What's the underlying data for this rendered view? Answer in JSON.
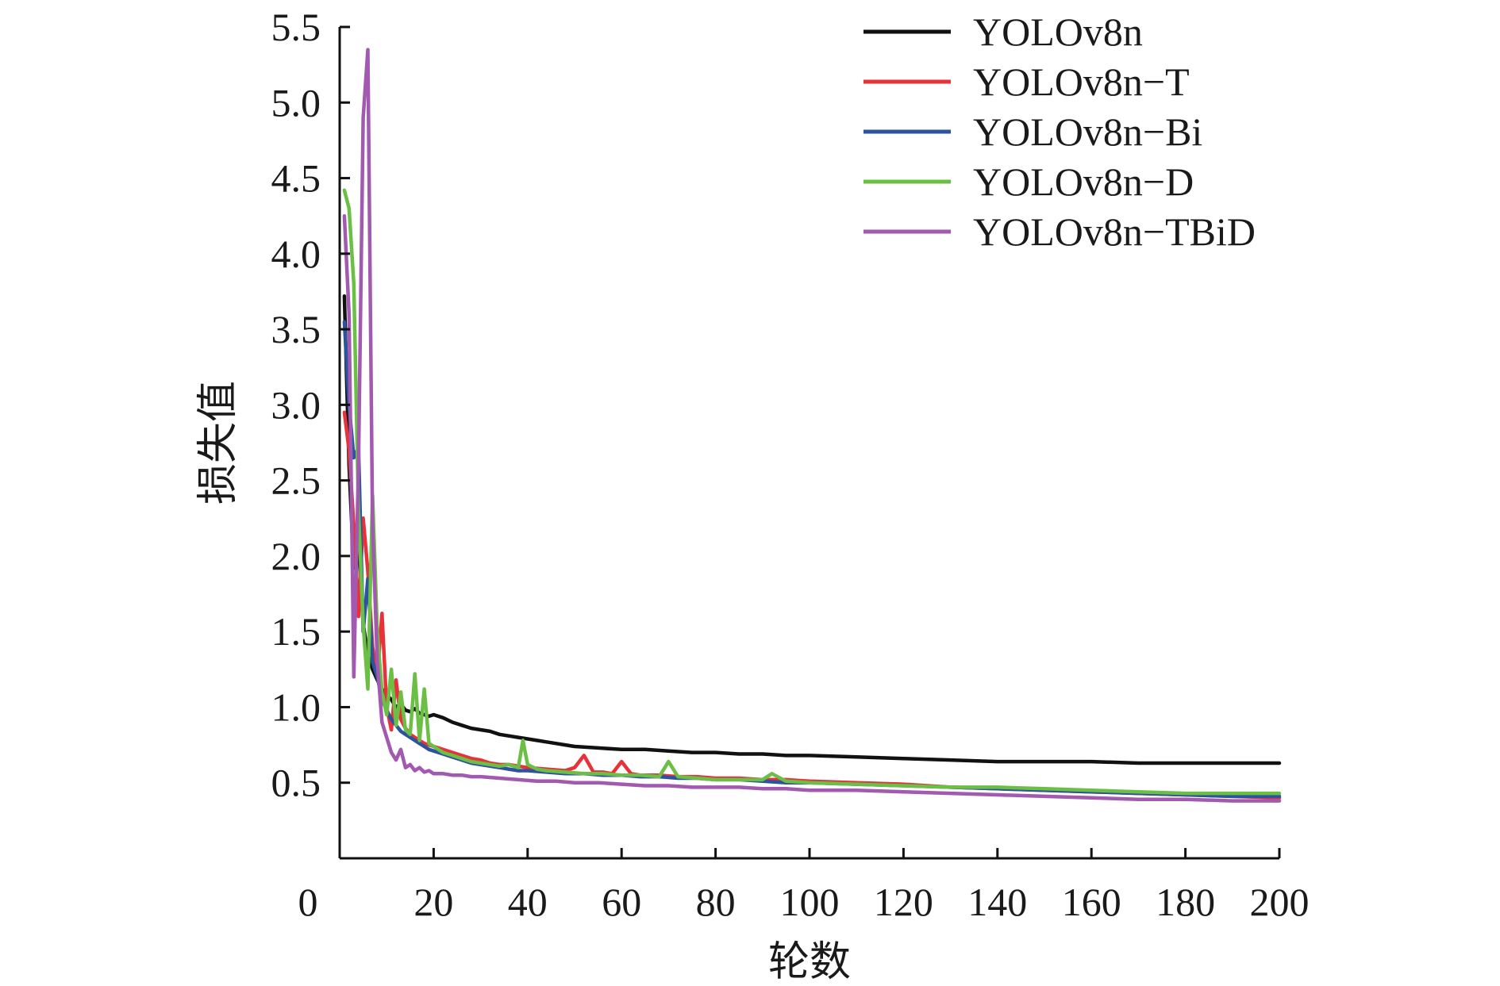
{
  "chart_data": {
    "type": "line",
    "title": "",
    "xlabel": "轮数",
    "ylabel": "损失值",
    "xlim": [
      0,
      200
    ],
    "ylim": [
      0,
      5.5
    ],
    "y_axis_min_label": "0",
    "xticks": [
      20,
      40,
      60,
      80,
      100,
      120,
      140,
      160,
      180,
      200
    ],
    "yticks": [
      0.5,
      1.0,
      1.5,
      2.0,
      2.5,
      3.0,
      3.5,
      4.0,
      4.5,
      5.0,
      5.5
    ],
    "ytick_labels": [
      "0.5",
      "1.0",
      "1.5",
      "2.0",
      "2.5",
      "3.0",
      "3.5",
      "4.0",
      "4.5",
      "5.0",
      "5.5"
    ],
    "grid": false,
    "legend_position": "top-right",
    "series": [
      {
        "name": "YOLOv8n",
        "color": "#111111",
        "points": [
          [
            1,
            3.72
          ],
          [
            2,
            2.6
          ],
          [
            3,
            1.92
          ],
          [
            4,
            2.1
          ],
          [
            5,
            1.55
          ],
          [
            6,
            1.35
          ],
          [
            7,
            1.25
          ],
          [
            8,
            1.18
          ],
          [
            9,
            1.12
          ],
          [
            10,
            1.08
          ],
          [
            11,
            1.05
          ],
          [
            12,
            1.0
          ],
          [
            13,
            1.02
          ],
          [
            14,
            0.98
          ],
          [
            15,
            0.97
          ],
          [
            16,
            0.99
          ],
          [
            17,
            0.96
          ],
          [
            18,
            0.95
          ],
          [
            19,
            0.94
          ],
          [
            20,
            0.95
          ],
          [
            22,
            0.93
          ],
          [
            24,
            0.9
          ],
          [
            26,
            0.88
          ],
          [
            28,
            0.86
          ],
          [
            30,
            0.85
          ],
          [
            32,
            0.84
          ],
          [
            34,
            0.82
          ],
          [
            36,
            0.81
          ],
          [
            38,
            0.8
          ],
          [
            40,
            0.79
          ],
          [
            42,
            0.78
          ],
          [
            44,
            0.77
          ],
          [
            46,
            0.76
          ],
          [
            48,
            0.75
          ],
          [
            50,
            0.74
          ],
          [
            55,
            0.73
          ],
          [
            60,
            0.72
          ],
          [
            65,
            0.72
          ],
          [
            70,
            0.71
          ],
          [
            75,
            0.7
          ],
          [
            80,
            0.7
          ],
          [
            85,
            0.69
          ],
          [
            90,
            0.69
          ],
          [
            95,
            0.68
          ],
          [
            100,
            0.68
          ],
          [
            110,
            0.67
          ],
          [
            120,
            0.66
          ],
          [
            130,
            0.65
          ],
          [
            140,
            0.64
          ],
          [
            150,
            0.64
          ],
          [
            160,
            0.64
          ],
          [
            170,
            0.63
          ],
          [
            180,
            0.63
          ],
          [
            190,
            0.63
          ],
          [
            200,
            0.63
          ]
        ]
      },
      {
        "name": "YOLOv8n−T",
        "color": "#e8323a",
        "points": [
          [
            1,
            2.95
          ],
          [
            2,
            2.7
          ],
          [
            3,
            2.2
          ],
          [
            4,
            1.6
          ],
          [
            5,
            2.25
          ],
          [
            6,
            1.9
          ],
          [
            7,
            1.4
          ],
          [
            8,
            1.2
          ],
          [
            9,
            1.62
          ],
          [
            10,
            1.0
          ],
          [
            11,
            0.85
          ],
          [
            12,
            1.18
          ],
          [
            13,
            0.92
          ],
          [
            14,
            0.86
          ],
          [
            15,
            0.82
          ],
          [
            16,
            0.8
          ],
          [
            17,
            0.78
          ],
          [
            18,
            0.76
          ],
          [
            19,
            0.75
          ],
          [
            20,
            0.74
          ],
          [
            22,
            0.72
          ],
          [
            24,
            0.7
          ],
          [
            26,
            0.68
          ],
          [
            28,
            0.66
          ],
          [
            30,
            0.65
          ],
          [
            32,
            0.63
          ],
          [
            34,
            0.62
          ],
          [
            36,
            0.62
          ],
          [
            38,
            0.61
          ],
          [
            40,
            0.6
          ],
          [
            44,
            0.59
          ],
          [
            48,
            0.58
          ],
          [
            50,
            0.6
          ],
          [
            52,
            0.68
          ],
          [
            54,
            0.57
          ],
          [
            56,
            0.57
          ],
          [
            58,
            0.56
          ],
          [
            60,
            0.64
          ],
          [
            62,
            0.56
          ],
          [
            64,
            0.55
          ],
          [
            68,
            0.55
          ],
          [
            72,
            0.54
          ],
          [
            76,
            0.54
          ],
          [
            80,
            0.53
          ],
          [
            85,
            0.53
          ],
          [
            90,
            0.52
          ],
          [
            95,
            0.52
          ],
          [
            100,
            0.51
          ],
          [
            110,
            0.5
          ],
          [
            120,
            0.49
          ],
          [
            130,
            0.47
          ],
          [
            140,
            0.46
          ],
          [
            150,
            0.45
          ],
          [
            160,
            0.44
          ],
          [
            170,
            0.43
          ],
          [
            180,
            0.42
          ],
          [
            190,
            0.41
          ],
          [
            200,
            0.4
          ]
        ]
      },
      {
        "name": "YOLOv8n−Bi",
        "color": "#2c52a0",
        "points": [
          [
            1,
            3.55
          ],
          [
            2,
            3.0
          ],
          [
            3,
            2.65
          ],
          [
            4,
            2.72
          ],
          [
            5,
            1.5
          ],
          [
            6,
            1.85
          ],
          [
            7,
            1.3
          ],
          [
            8,
            1.2
          ],
          [
            9,
            1.05
          ],
          [
            10,
            0.98
          ],
          [
            11,
            0.92
          ],
          [
            12,
            0.88
          ],
          [
            13,
            0.84
          ],
          [
            14,
            0.82
          ],
          [
            15,
            0.8
          ],
          [
            16,
            0.78
          ],
          [
            17,
            0.76
          ],
          [
            18,
            0.74
          ],
          [
            19,
            0.72
          ],
          [
            20,
            0.71
          ],
          [
            22,
            0.69
          ],
          [
            24,
            0.67
          ],
          [
            26,
            0.65
          ],
          [
            28,
            0.63
          ],
          [
            30,
            0.62
          ],
          [
            32,
            0.61
          ],
          [
            34,
            0.6
          ],
          [
            36,
            0.59
          ],
          [
            38,
            0.58
          ],
          [
            40,
            0.58
          ],
          [
            44,
            0.57
          ],
          [
            48,
            0.56
          ],
          [
            52,
            0.56
          ],
          [
            56,
            0.55
          ],
          [
            60,
            0.55
          ],
          [
            64,
            0.54
          ],
          [
            68,
            0.54
          ],
          [
            72,
            0.53
          ],
          [
            76,
            0.53
          ],
          [
            80,
            0.52
          ],
          [
            85,
            0.52
          ],
          [
            90,
            0.51
          ],
          [
            95,
            0.5
          ],
          [
            100,
            0.5
          ],
          [
            110,
            0.49
          ],
          [
            120,
            0.48
          ],
          [
            130,
            0.47
          ],
          [
            140,
            0.46
          ],
          [
            150,
            0.45
          ],
          [
            160,
            0.44
          ],
          [
            170,
            0.43
          ],
          [
            180,
            0.42
          ],
          [
            190,
            0.41
          ],
          [
            200,
            0.41
          ]
        ]
      },
      {
        "name": "YOLOv8n−D",
        "color": "#6cbf45",
        "points": [
          [
            1,
            4.42
          ],
          [
            2,
            4.3
          ],
          [
            3,
            3.8
          ],
          [
            4,
            2.3
          ],
          [
            5,
            1.55
          ],
          [
            6,
            1.12
          ],
          [
            7,
            2.4
          ],
          [
            8,
            1.5
          ],
          [
            9,
            1.1
          ],
          [
            10,
            0.95
          ],
          [
            11,
            1.25
          ],
          [
            12,
            0.88
          ],
          [
            13,
            1.1
          ],
          [
            14,
            0.85
          ],
          [
            15,
            0.82
          ],
          [
            16,
            1.22
          ],
          [
            17,
            0.78
          ],
          [
            18,
            1.12
          ],
          [
            19,
            0.76
          ],
          [
            20,
            0.74
          ],
          [
            22,
            0.7
          ],
          [
            24,
            0.68
          ],
          [
            26,
            0.66
          ],
          [
            28,
            0.64
          ],
          [
            30,
            0.63
          ],
          [
            34,
            0.61
          ],
          [
            36,
            0.62
          ],
          [
            38,
            0.6
          ],
          [
            39,
            0.78
          ],
          [
            40,
            0.62
          ],
          [
            42,
            0.59
          ],
          [
            44,
            0.58
          ],
          [
            48,
            0.57
          ],
          [
            52,
            0.56
          ],
          [
            56,
            0.56
          ],
          [
            60,
            0.55
          ],
          [
            64,
            0.55
          ],
          [
            68,
            0.54
          ],
          [
            70,
            0.64
          ],
          [
            72,
            0.54
          ],
          [
            76,
            0.53
          ],
          [
            80,
            0.52
          ],
          [
            85,
            0.52
          ],
          [
            90,
            0.52
          ],
          [
            92,
            0.56
          ],
          [
            95,
            0.51
          ],
          [
            100,
            0.5
          ],
          [
            110,
            0.49
          ],
          [
            120,
            0.48
          ],
          [
            130,
            0.47
          ],
          [
            140,
            0.47
          ],
          [
            150,
            0.46
          ],
          [
            160,
            0.45
          ],
          [
            170,
            0.44
          ],
          [
            180,
            0.43
          ],
          [
            190,
            0.43
          ],
          [
            200,
            0.43
          ]
        ]
      },
      {
        "name": "YOLOv8n−TBiD",
        "color": "#a259b0",
        "points": [
          [
            1,
            4.25
          ],
          [
            2,
            3.6
          ],
          [
            3,
            1.2
          ],
          [
            4,
            2.6
          ],
          [
            5,
            4.9
          ],
          [
            6,
            5.35
          ],
          [
            7,
            2.2
          ],
          [
            8,
            1.3
          ],
          [
            9,
            0.9
          ],
          [
            10,
            0.8
          ],
          [
            11,
            0.7
          ],
          [
            12,
            0.65
          ],
          [
            13,
            0.72
          ],
          [
            14,
            0.6
          ],
          [
            15,
            0.62
          ],
          [
            16,
            0.58
          ],
          [
            17,
            0.6
          ],
          [
            18,
            0.57
          ],
          [
            19,
            0.58
          ],
          [
            20,
            0.56
          ],
          [
            22,
            0.56
          ],
          [
            24,
            0.55
          ],
          [
            26,
            0.55
          ],
          [
            28,
            0.54
          ],
          [
            30,
            0.54
          ],
          [
            34,
            0.53
          ],
          [
            38,
            0.52
          ],
          [
            42,
            0.51
          ],
          [
            46,
            0.51
          ],
          [
            50,
            0.5
          ],
          [
            55,
            0.5
          ],
          [
            60,
            0.49
          ],
          [
            65,
            0.48
          ],
          [
            70,
            0.48
          ],
          [
            75,
            0.47
          ],
          [
            80,
            0.47
          ],
          [
            85,
            0.47
          ],
          [
            90,
            0.46
          ],
          [
            95,
            0.46
          ],
          [
            100,
            0.45
          ],
          [
            110,
            0.45
          ],
          [
            120,
            0.44
          ],
          [
            130,
            0.43
          ],
          [
            140,
            0.42
          ],
          [
            150,
            0.41
          ],
          [
            160,
            0.4
          ],
          [
            170,
            0.39
          ],
          [
            180,
            0.39
          ],
          [
            190,
            0.38
          ],
          [
            200,
            0.38
          ]
        ]
      }
    ]
  }
}
